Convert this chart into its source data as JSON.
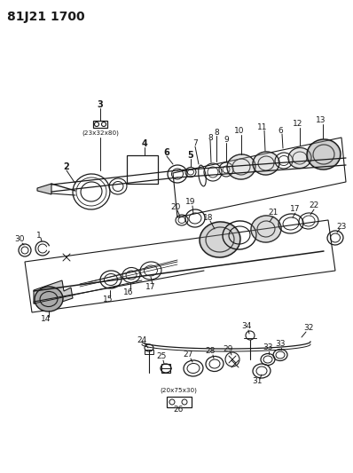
{
  "title": "81J21 1700",
  "bg_color": "#ffffff",
  "line_color": "#1a1a1a",
  "figsize": [
    3.98,
    5.33
  ],
  "dpi": 100
}
